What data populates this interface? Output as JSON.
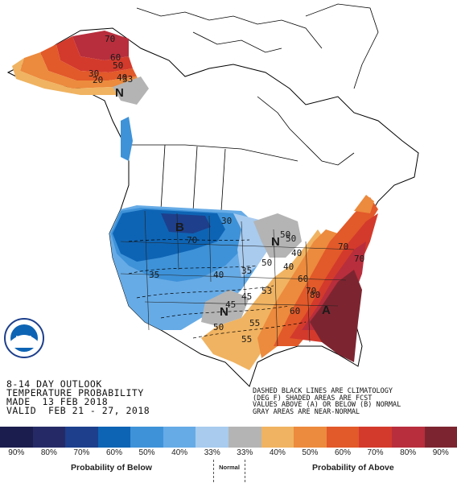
{
  "title": {
    "line1": "8-14 DAY OUTLOOK",
    "line2": "TEMPERATURE PROBABILITY",
    "line3": "MADE  13 FEB 2018",
    "line4": "VALID  FEB 21 - 27, 2018"
  },
  "note": {
    "line1": "DASHED BLACK LINES ARE CLIMATOLOGY",
    "line2": "(DEG F) SHADED AREAS ARE FCST",
    "line3": "VALUES ABOVE (A) OR BELOW (B) NORMAL",
    "line4": "GRAY AREAS ARE NEAR-NORMAL"
  },
  "legend": {
    "below_label": "Probability of Below",
    "normal_label": "Normal",
    "above_label": "Probability of Above",
    "swatches": [
      {
        "pct": "90%",
        "color": "#1b1d4e"
      },
      {
        "pct": "80%",
        "color": "#252a66"
      },
      {
        "pct": "70%",
        "color": "#1d3f8c"
      },
      {
        "pct": "60%",
        "color": "#0e64b4"
      },
      {
        "pct": "50%",
        "color": "#3e92d8"
      },
      {
        "pct": "40%",
        "color": "#66abe6"
      },
      {
        "pct": "33%",
        "color": "#a8cbee"
      },
      {
        "pct": "33%",
        "color": "#b4b4b4"
      },
      {
        "pct": "40%",
        "color": "#f0b361"
      },
      {
        "pct": "50%",
        "color": "#ec8a3d"
      },
      {
        "pct": "60%",
        "color": "#e2592a"
      },
      {
        "pct": "70%",
        "color": "#d33a2c"
      },
      {
        "pct": "80%",
        "color": "#b82e3c"
      },
      {
        "pct": "90%",
        "color": "#7c2530"
      }
    ]
  },
  "map": {
    "logo": "NOAA",
    "region_letters": {
      "alaska_near_normal": "N",
      "west_below": "B",
      "midwest_near_normal": "N",
      "texas_near_normal": "N",
      "southeast_above": "A"
    },
    "alaska_labels": [
      "70",
      "60",
      "50",
      "40",
      "30",
      "20",
      "33"
    ],
    "conus_labels": [
      "30",
      "70",
      "50",
      "40",
      "35",
      "40",
      "60",
      "70",
      "80",
      "70",
      "70",
      "60",
      "55",
      "50",
      "45",
      "50",
      "53",
      "35",
      "40",
      "45",
      "55",
      "50"
    ]
  }
}
